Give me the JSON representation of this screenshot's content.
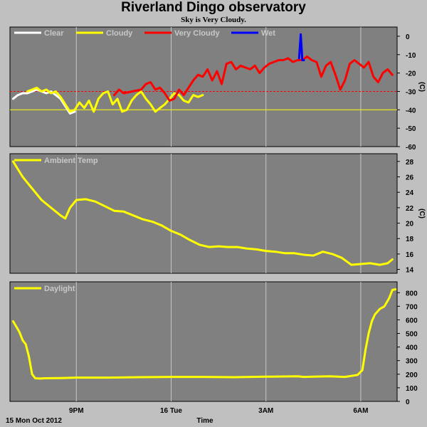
{
  "title": "Riverland Dingo observatory",
  "subtitle": "Sky is Very Cloudy.",
  "colors": {
    "background": "#c0c0c0",
    "plot_bg": "#808080",
    "grid": "#c8c8c8",
    "clear": "#ffffff",
    "cloudy": "#ffff00",
    "very_cloudy": "#ff0000",
    "wet": "#0000ff",
    "threshold_red": "#ff0000",
    "threshold_yellow": "#ffff00"
  },
  "x_axis": {
    "label": "Time",
    "start_label": "15 Mon Oct 2012",
    "ticks": [
      {
        "label": "9PM",
        "hours": 2.0
      },
      {
        "label": "16 Tue",
        "hours": 5.0
      },
      {
        "label": "3AM",
        "hours": 8.0
      },
      {
        "label": "6AM",
        "hours": 11.0
      }
    ],
    "range_hours": [
      -0.1,
      12.15
    ]
  },
  "chart_data": [
    {
      "type": "line",
      "name": "sky",
      "legend": [
        "Clear",
        "Cloudy",
        "Very Cloudy",
        "Wet"
      ],
      "ylabel": "(C)",
      "ylim": [
        -60,
        5
      ],
      "yticks": [
        0,
        -10,
        -20,
        -30,
        -40,
        -50,
        -60
      ],
      "thresholds": [
        -30,
        -40
      ],
      "series": [
        {
          "name": "Clear",
          "color": "#ffffff",
          "x": [
            0.0,
            0.15,
            0.3,
            0.45,
            0.6,
            0.75,
            0.9,
            1.05,
            1.2,
            1.35,
            1.5,
            1.65,
            1.8,
            1.95
          ],
          "y": [
            -34,
            -32,
            -31,
            -31,
            -30,
            -29,
            -30,
            -31,
            -30,
            -32,
            -34,
            -38,
            -42,
            -41
          ]
        },
        {
          "name": "Cloudy",
          "color": "#ffff00",
          "x": [
            0.45,
            0.6,
            0.75,
            0.9,
            1.05,
            1.2,
            1.35,
            1.5,
            1.65,
            1.8,
            1.95,
            2.1,
            2.25,
            2.4,
            2.55,
            2.7,
            2.85,
            3.0,
            3.15,
            3.3,
            3.45,
            3.6,
            3.75,
            3.9,
            4.05,
            4.2,
            4.35,
            4.5,
            4.65,
            4.8,
            4.95,
            5.1,
            5.25,
            5.4,
            5.55,
            5.7,
            5.85,
            6.0
          ],
          "y": [
            -30,
            -29,
            -28,
            -30,
            -29,
            -31,
            -30,
            -33,
            -37,
            -41,
            -40,
            -36,
            -39,
            -35,
            -41,
            -34,
            -31,
            -30,
            -37,
            -34,
            -41,
            -40,
            -35,
            -32,
            -30,
            -34,
            -37,
            -41,
            -39,
            -37,
            -34,
            -31,
            -32,
            -35,
            -36,
            -32,
            -33,
            -32
          ]
        },
        {
          "name": "Very Cloudy",
          "color": "#ff0000",
          "x": [
            3.2,
            3.35,
            3.5,
            4.05,
            4.2,
            4.35,
            4.5,
            4.65,
            4.8,
            4.95,
            5.1,
            5.25,
            5.4,
            5.55,
            5.7,
            5.85,
            6.0,
            6.15,
            6.3,
            6.45,
            6.6,
            6.75,
            6.9,
            7.05,
            7.2,
            7.35,
            7.5,
            7.65,
            7.8,
            7.95,
            8.1,
            8.25,
            8.4,
            8.55,
            8.7,
            8.85,
            9.0,
            9.15,
            9.3,
            9.45,
            9.6,
            9.75,
            9.9,
            10.05,
            10.2,
            10.35,
            10.5,
            10.65,
            10.8,
            10.95,
            11.1,
            11.25,
            11.4,
            11.55,
            11.7,
            11.85,
            12.0
          ],
          "y": [
            -32,
            -29,
            -31,
            -29,
            -26,
            -25,
            -29,
            -28,
            -31,
            -35,
            -34,
            -29,
            -32,
            -28,
            -24,
            -21,
            -22,
            -18,
            -24,
            -19,
            -26,
            -15,
            -14,
            -18,
            -16,
            -17,
            -18,
            -16,
            -20,
            -17,
            -15,
            -14,
            -13,
            -13,
            -12,
            -14,
            -13,
            -13,
            -11,
            -13,
            -14,
            -22,
            -16,
            -14,
            -21,
            -29,
            -24,
            -15,
            -13,
            -15,
            -17,
            -14,
            -22,
            -25,
            -20,
            -18,
            -21
          ]
        },
        {
          "name": "Wet",
          "color": "#0000ff",
          "x": [
            9.05,
            9.1,
            9.15,
            9.2
          ],
          "y": [
            -12,
            1,
            -13,
            -13
          ]
        }
      ]
    },
    {
      "type": "line",
      "name": "ambient",
      "legend": [
        "Ambient Temp"
      ],
      "ylabel": "(C)",
      "ylim": [
        13.5,
        29
      ],
      "yticks": [
        28,
        26,
        24,
        22,
        20,
        18,
        16,
        14
      ],
      "series": [
        {
          "name": "Ambient Temp",
          "color": "#ffff00",
          "x": [
            0.0,
            0.3,
            0.6,
            0.9,
            1.2,
            1.5,
            1.65,
            1.8,
            2.0,
            2.3,
            2.6,
            2.9,
            3.2,
            3.5,
            3.8,
            4.1,
            4.4,
            4.7,
            5.0,
            5.3,
            5.6,
            5.9,
            6.2,
            6.5,
            6.8,
            7.1,
            7.4,
            7.7,
            8.0,
            8.3,
            8.6,
            8.9,
            9.2,
            9.5,
            9.8,
            10.1,
            10.4,
            10.7,
            11.0,
            11.3,
            11.6,
            11.85,
            12.0
          ],
          "y": [
            28,
            26,
            24.5,
            23,
            22,
            21,
            20.6,
            22,
            23,
            23.1,
            22.8,
            22.2,
            21.6,
            21.5,
            21,
            20.5,
            20.2,
            19.7,
            19,
            18.5,
            17.8,
            17.2,
            16.9,
            17,
            16.9,
            16.9,
            16.7,
            16.6,
            16.4,
            16.3,
            16.1,
            16.1,
            15.9,
            15.8,
            16.3,
            16,
            15.5,
            14.6,
            14.7,
            14.8,
            14.6,
            14.8,
            15.3
          ]
        }
      ]
    },
    {
      "type": "line",
      "name": "daylight",
      "legend": [
        "Daylight"
      ],
      "ylabel": "",
      "ylim": [
        0,
        880
      ],
      "yticks": [
        800,
        700,
        600,
        500,
        400,
        300,
        200,
        100,
        0
      ],
      "series": [
        {
          "name": "Daylight",
          "color": "#ffff00",
          "x": [
            0.0,
            0.1,
            0.2,
            0.3,
            0.4,
            0.5,
            0.6,
            0.7,
            0.85,
            1.0,
            1.5,
            2.0,
            3.0,
            4.0,
            5.0,
            6.0,
            7.0,
            8.0,
            9.0,
            9.2,
            9.5,
            10.0,
            10.5,
            10.9,
            11.05,
            11.15,
            11.25,
            11.35,
            11.45,
            11.6,
            11.75,
            11.9,
            12.0,
            12.1
          ],
          "y": [
            590,
            550,
            510,
            450,
            420,
            330,
            200,
            170,
            168,
            170,
            172,
            175,
            175,
            178,
            180,
            180,
            178,
            182,
            185,
            180,
            182,
            185,
            180,
            195,
            230,
            380,
            500,
            590,
            640,
            680,
            700,
            760,
            820,
            825
          ]
        }
      ]
    }
  ]
}
